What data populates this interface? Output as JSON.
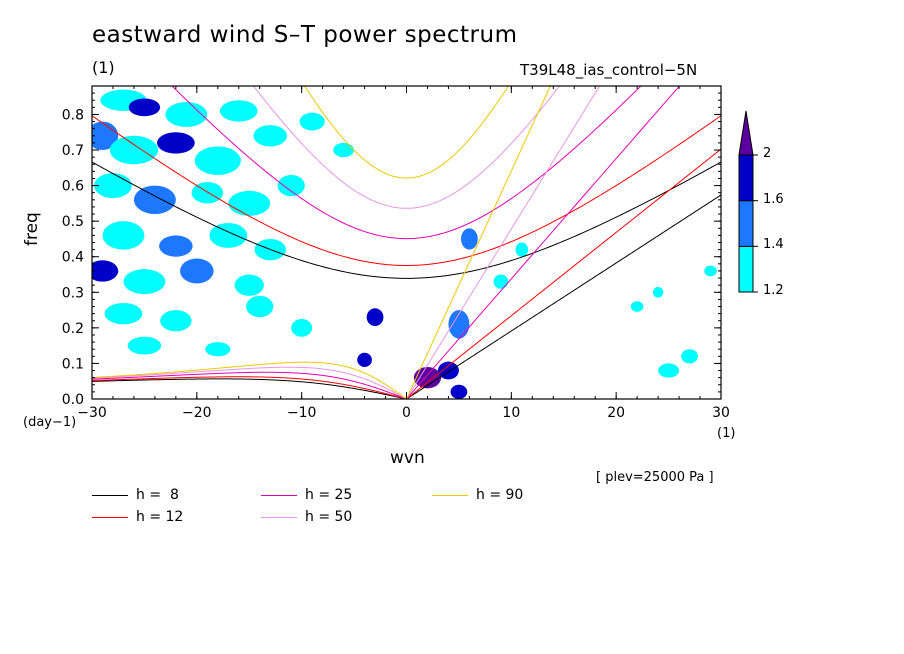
{
  "title": "eastward wind S–T power spectrum",
  "run_tag": "(1)",
  "run_name": "T39L48_ias_control−5N",
  "pressure_note": "[ plev=25000 Pa ]",
  "chart_data": {
    "type": "heatmap",
    "xlabel": "wvn",
    "ylabel": "freq",
    "x_unit": "(1)",
    "y_unit": "(day−1)",
    "xlim": [
      -30,
      30
    ],
    "ylim": [
      0,
      0.88
    ],
    "x_ticks": [
      {
        "v": -30,
        "label": "−30"
      },
      {
        "v": -20,
        "label": "−20"
      },
      {
        "v": -10,
        "label": "−10"
      },
      {
        "v": 0,
        "label": "0"
      },
      {
        "v": 10,
        "label": "10"
      },
      {
        "v": 20,
        "label": "20"
      },
      {
        "v": 30,
        "label": "30"
      }
    ],
    "y_ticks": [
      {
        "v": 0.0,
        "label": "0.0"
      },
      {
        "v": 0.1,
        "label": "0.1"
      },
      {
        "v": 0.2,
        "label": "0.2"
      },
      {
        "v": 0.3,
        "label": "0.3"
      },
      {
        "v": 0.4,
        "label": "0.4"
      },
      {
        "v": 0.5,
        "label": "0.5"
      },
      {
        "v": 0.6,
        "label": "0.6"
      },
      {
        "v": 0.7,
        "label": "0.7"
      },
      {
        "v": 0.8,
        "label": "0.8"
      }
    ],
    "colorbar": {
      "levels": [
        1.2,
        1.4,
        1.6,
        2
      ],
      "labels": [
        "1.2",
        "1.4",
        "1.6",
        "2"
      ],
      "colors": [
        "#00ffff",
        "#1e78ff",
        "#0000c8",
        "#5a00a0"
      ]
    },
    "contour_regions": [
      {
        "x": -27,
        "y": 0.84,
        "rx": 2.2,
        "ry": 0.03,
        "level": 1.2
      },
      {
        "x": -25,
        "y": 0.82,
        "rx": 1.5,
        "ry": 0.025,
        "level": 1.6
      },
      {
        "x": -21,
        "y": 0.8,
        "rx": 2.0,
        "ry": 0.035,
        "level": 1.2
      },
      {
        "x": -16,
        "y": 0.81,
        "rx": 1.8,
        "ry": 0.03,
        "level": 1.2
      },
      {
        "x": -29,
        "y": 0.74,
        "rx": 1.5,
        "ry": 0.04,
        "level": 1.4
      },
      {
        "x": -26,
        "y": 0.7,
        "rx": 2.3,
        "ry": 0.04,
        "level": 1.2
      },
      {
        "x": -22,
        "y": 0.72,
        "rx": 1.8,
        "ry": 0.03,
        "level": 1.6
      },
      {
        "x": -18,
        "y": 0.67,
        "rx": 2.2,
        "ry": 0.04,
        "level": 1.2
      },
      {
        "x": -13,
        "y": 0.74,
        "rx": 1.6,
        "ry": 0.03,
        "level": 1.2
      },
      {
        "x": -9,
        "y": 0.78,
        "rx": 1.2,
        "ry": 0.025,
        "level": 1.2
      },
      {
        "x": -6,
        "y": 0.7,
        "rx": 1.0,
        "ry": 0.02,
        "level": 1.2
      },
      {
        "x": -28,
        "y": 0.6,
        "rx": 1.8,
        "ry": 0.035,
        "level": 1.2
      },
      {
        "x": -24,
        "y": 0.56,
        "rx": 2.0,
        "ry": 0.04,
        "level": 1.4
      },
      {
        "x": -19,
        "y": 0.58,
        "rx": 1.5,
        "ry": 0.03,
        "level": 1.2
      },
      {
        "x": -15,
        "y": 0.55,
        "rx": 2.0,
        "ry": 0.035,
        "level": 1.2
      },
      {
        "x": -11,
        "y": 0.6,
        "rx": 1.3,
        "ry": 0.03,
        "level": 1.2
      },
      {
        "x": -27,
        "y": 0.46,
        "rx": 2.0,
        "ry": 0.04,
        "level": 1.2
      },
      {
        "x": -22,
        "y": 0.43,
        "rx": 1.6,
        "ry": 0.03,
        "level": 1.4
      },
      {
        "x": -17,
        "y": 0.46,
        "rx": 1.8,
        "ry": 0.035,
        "level": 1.2
      },
      {
        "x": -13,
        "y": 0.42,
        "rx": 1.5,
        "ry": 0.03,
        "level": 1.2
      },
      {
        "x": -29,
        "y": 0.36,
        "rx": 1.5,
        "ry": 0.03,
        "level": 1.6
      },
      {
        "x": -25,
        "y": 0.33,
        "rx": 2.0,
        "ry": 0.035,
        "level": 1.2
      },
      {
        "x": -20,
        "y": 0.36,
        "rx": 1.6,
        "ry": 0.035,
        "level": 1.4
      },
      {
        "x": -15,
        "y": 0.32,
        "rx": 1.4,
        "ry": 0.03,
        "level": 1.2
      },
      {
        "x": -27,
        "y": 0.24,
        "rx": 1.8,
        "ry": 0.03,
        "level": 1.2
      },
      {
        "x": -22,
        "y": 0.22,
        "rx": 1.5,
        "ry": 0.03,
        "level": 1.2
      },
      {
        "x": -14,
        "y": 0.26,
        "rx": 1.3,
        "ry": 0.03,
        "level": 1.2
      },
      {
        "x": -25,
        "y": 0.15,
        "rx": 1.6,
        "ry": 0.025,
        "level": 1.2
      },
      {
        "x": -18,
        "y": 0.14,
        "rx": 1.2,
        "ry": 0.02,
        "level": 1.2
      },
      {
        "x": -10,
        "y": 0.2,
        "rx": 1.0,
        "ry": 0.025,
        "level": 1.2
      },
      {
        "x": -3,
        "y": 0.23,
        "rx": 0.8,
        "ry": 0.025,
        "level": 1.6
      },
      {
        "x": -4,
        "y": 0.11,
        "rx": 0.7,
        "ry": 0.02,
        "level": 1.6
      },
      {
        "x": 2,
        "y": 0.06,
        "rx": 1.3,
        "ry": 0.03,
        "level": 2
      },
      {
        "x": 4,
        "y": 0.08,
        "rx": 1.0,
        "ry": 0.025,
        "level": 1.6
      },
      {
        "x": 5,
        "y": 0.21,
        "rx": 1.0,
        "ry": 0.04,
        "level": 1.4
      },
      {
        "x": 6,
        "y": 0.45,
        "rx": 0.8,
        "ry": 0.03,
        "level": 1.4
      },
      {
        "x": 5,
        "y": 0.02,
        "rx": 0.8,
        "ry": 0.02,
        "level": 1.6
      },
      {
        "x": 9,
        "y": 0.33,
        "rx": 0.7,
        "ry": 0.02,
        "level": 1.2
      },
      {
        "x": 11,
        "y": 0.42,
        "rx": 0.6,
        "ry": 0.02,
        "level": 1.2
      },
      {
        "x": 22,
        "y": 0.26,
        "rx": 0.6,
        "ry": 0.015,
        "level": 1.2
      },
      {
        "x": 25,
        "y": 0.08,
        "rx": 1.0,
        "ry": 0.02,
        "level": 1.2
      },
      {
        "x": 27,
        "y": 0.12,
        "rx": 0.8,
        "ry": 0.02,
        "level": 1.2
      },
      {
        "x": 24,
        "y": 0.3,
        "rx": 0.5,
        "ry": 0.015,
        "level": 1.2
      },
      {
        "x": 29,
        "y": 0.36,
        "rx": 0.6,
        "ry": 0.015,
        "level": 1.2
      }
    ],
    "dispersion_curves": [
      {
        "name": "h =  8",
        "h": 8,
        "color": "#000000"
      },
      {
        "name": "h = 12",
        "h": 12,
        "color": "#ff0000"
      },
      {
        "name": "h = 25",
        "h": 25,
        "color": "#e600b4"
      },
      {
        "name": "h = 50",
        "h": 50,
        "color": "#e696e6"
      },
      {
        "name": "h = 90",
        "h": 90,
        "color": "#f0c800"
      }
    ]
  }
}
